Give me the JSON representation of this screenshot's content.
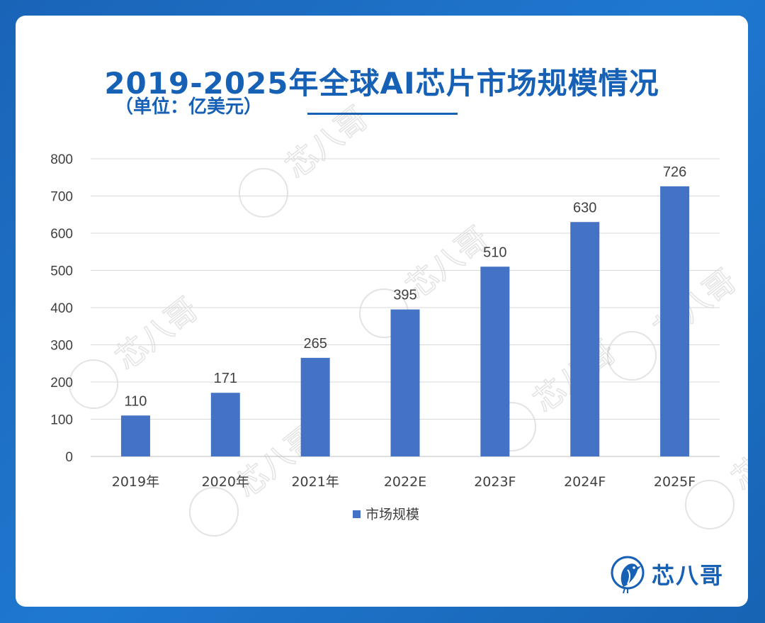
{
  "title": "2019-2025年全球AI芯片市场规模情况",
  "subtitle": "（单位：亿美元）",
  "brand": {
    "name": "芯八哥",
    "logo_icon": "bird-logo-icon"
  },
  "watermark": "芯八哥",
  "colors": {
    "accent": "#1660b6",
    "bar": "#4472c4",
    "background": "#1a6fc4"
  },
  "chart_data": {
    "type": "bar",
    "categories": [
      "2019年",
      "2020年",
      "2021年",
      "2022E",
      "2023F",
      "2024F",
      "2025F"
    ],
    "series": [
      {
        "name": "市场规模",
        "values": [
          110,
          171,
          265,
          395,
          510,
          630,
          726
        ]
      }
    ],
    "ylim": [
      0,
      800
    ],
    "yticks": [
      0,
      100,
      200,
      300,
      400,
      500,
      600,
      700,
      800
    ],
    "grid": true,
    "legend": "bottom"
  }
}
